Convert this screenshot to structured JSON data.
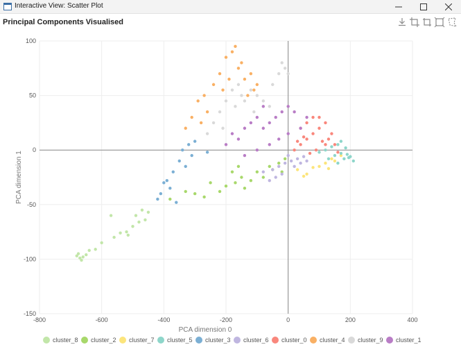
{
  "window": {
    "title": "Interactive View: Scatter Plot",
    "buttons": {
      "minimize": "minimize-icon",
      "maximize": "maximize-icon",
      "close": "close-icon"
    }
  },
  "page": {
    "title": "Principal Components Visualised"
  },
  "toolbar": {
    "icons": [
      "download-icon",
      "crop-icon",
      "crop-alt-icon",
      "zoom-select-icon",
      "lasso-select-icon"
    ]
  },
  "chart_data": {
    "type": "scatter",
    "xlabel": "PCA dimension 0",
    "ylabel": "PCA dimension 1",
    "xlim": [
      -800,
      400
    ],
    "ylim": [
      -150,
      100
    ],
    "xticks": [
      -800,
      -600,
      -400,
      -200,
      0,
      200,
      400
    ],
    "yticks": [
      -150,
      -100,
      -50,
      0,
      50,
      100
    ],
    "grid": true,
    "legend_position": "bottom",
    "series": [
      {
        "name": "cluster_8",
        "color": "#c2e6a9",
        "points": [
          [
            -680,
            -97
          ],
          [
            -670,
            -99
          ],
          [
            -665,
            -101
          ],
          [
            -675,
            -95
          ],
          [
            -660,
            -98
          ],
          [
            -650,
            -96
          ],
          [
            -640,
            -92
          ],
          [
            -620,
            -91
          ],
          [
            -600,
            -85
          ],
          [
            -570,
            -60
          ],
          [
            -560,
            -80
          ],
          [
            -540,
            -76
          ],
          [
            -520,
            -75
          ],
          [
            -515,
            -78
          ],
          [
            -500,
            -70
          ],
          [
            -490,
            -60
          ],
          [
            -480,
            -66
          ],
          [
            -470,
            -55
          ],
          [
            -460,
            -64
          ],
          [
            -450,
            -57
          ]
        ]
      },
      {
        "name": "cluster_2",
        "color": "#a8d86b",
        "points": [
          [
            -380,
            -45
          ],
          [
            -330,
            -38
          ],
          [
            -300,
            -40
          ],
          [
            -270,
            -43
          ],
          [
            -250,
            -30
          ],
          [
            -220,
            -38
          ],
          [
            -200,
            -33
          ],
          [
            -180,
            -20
          ],
          [
            -170,
            -30
          ],
          [
            -150,
            -25
          ],
          [
            -140,
            -35
          ],
          [
            -120,
            -28
          ],
          [
            -100,
            -20
          ],
          [
            -80,
            -25
          ],
          [
            -60,
            -15
          ],
          [
            -50,
            -18
          ],
          [
            -30,
            -12
          ],
          [
            -20,
            -20
          ],
          [
            -10,
            -8
          ],
          [
            -160,
            -15
          ]
        ]
      },
      {
        "name": "cluster_7",
        "color": "#fce57c",
        "points": [
          [
            30,
            -18
          ],
          [
            60,
            -22
          ],
          [
            80,
            -16
          ],
          [
            100,
            -15
          ],
          [
            120,
            -12
          ],
          [
            130,
            -17
          ],
          [
            140,
            -8
          ],
          [
            150,
            -10
          ],
          [
            170,
            -5
          ],
          [
            50,
            -24
          ]
        ]
      },
      {
        "name": "cluster_5",
        "color": "#8ed6ca",
        "points": [
          [
            100,
            -2
          ],
          [
            120,
            0
          ],
          [
            140,
            3
          ],
          [
            150,
            -5
          ],
          [
            160,
            5
          ],
          [
            170,
            -3
          ],
          [
            180,
            -8
          ],
          [
            190,
            -4
          ],
          [
            200,
            -6
          ],
          [
            210,
            -10
          ],
          [
            130,
            -8
          ],
          [
            160,
            -12
          ],
          [
            170,
            8
          ],
          [
            185,
            2
          ],
          [
            195,
            -7
          ]
        ]
      },
      {
        "name": "cluster_3",
        "color": "#7bafd4",
        "points": [
          [
            -400,
            -30
          ],
          [
            -390,
            -28
          ],
          [
            -380,
            -35
          ],
          [
            -370,
            -20
          ],
          [
            -350,
            -10
          ],
          [
            -340,
            0
          ],
          [
            -320,
            5
          ],
          [
            -300,
            8
          ],
          [
            -260,
            -2
          ],
          [
            -360,
            -48
          ],
          [
            -410,
            -40
          ],
          [
            -420,
            -45
          ],
          [
            -330,
            -15
          ],
          [
            -310,
            -5
          ]
        ]
      },
      {
        "name": "cluster_6",
        "color": "#bfb6e0",
        "points": [
          [
            -80,
            -20
          ],
          [
            -50,
            -18
          ],
          [
            -30,
            -15
          ],
          [
            -10,
            -12
          ],
          [
            10,
            -10
          ],
          [
            20,
            -15
          ],
          [
            30,
            -8
          ],
          [
            40,
            -12
          ],
          [
            50,
            -6
          ],
          [
            60,
            -10
          ],
          [
            -40,
            -25
          ],
          [
            -20,
            -22
          ],
          [
            0,
            -5
          ],
          [
            -60,
            -28
          ]
        ]
      },
      {
        "name": "cluster_0",
        "color": "#f9877c",
        "points": [
          [
            20,
            0
          ],
          [
            40,
            5
          ],
          [
            60,
            10
          ],
          [
            80,
            15
          ],
          [
            100,
            20
          ],
          [
            120,
            25
          ],
          [
            130,
            10
          ],
          [
            150,
            5
          ],
          [
            140,
            15
          ],
          [
            90,
            0
          ],
          [
            70,
            -3
          ],
          [
            110,
            8
          ],
          [
            40,
            20
          ],
          [
            60,
            25
          ],
          [
            100,
            30
          ],
          [
            50,
            12
          ],
          [
            120,
            5
          ],
          [
            160,
            -2
          ],
          [
            30,
            8
          ],
          [
            80,
            30
          ]
        ]
      },
      {
        "name": "cluster_4",
        "color": "#f9b064",
        "points": [
          [
            -330,
            20
          ],
          [
            -310,
            30
          ],
          [
            -290,
            45
          ],
          [
            -270,
            50
          ],
          [
            -260,
            35
          ],
          [
            -240,
            60
          ],
          [
            -220,
            70
          ],
          [
            -200,
            85
          ],
          [
            -180,
            90
          ],
          [
            -160,
            75
          ],
          [
            -170,
            95
          ],
          [
            -150,
            80
          ],
          [
            -140,
            65
          ],
          [
            -120,
            70
          ],
          [
            -110,
            55
          ],
          [
            -100,
            60
          ],
          [
            -130,
            50
          ],
          [
            -190,
            65
          ],
          [
            -210,
            55
          ],
          [
            -280,
            25
          ]
        ]
      },
      {
        "name": "cluster_9",
        "color": "#d9d9d9",
        "points": [
          [
            -260,
            15
          ],
          [
            -240,
            25
          ],
          [
            -220,
            35
          ],
          [
            -200,
            45
          ],
          [
            -180,
            55
          ],
          [
            -160,
            60
          ],
          [
            -150,
            50
          ],
          [
            -140,
            45
          ],
          [
            -120,
            55
          ],
          [
            -100,
            50
          ],
          [
            -80,
            45
          ],
          [
            -60,
            40
          ],
          [
            -50,
            60
          ],
          [
            -30,
            70
          ],
          [
            -20,
            80
          ],
          [
            -10,
            75
          ],
          [
            0,
            70
          ],
          [
            -170,
            40
          ],
          [
            -210,
            20
          ],
          [
            -110,
            35
          ]
        ]
      },
      {
        "name": "cluster_1",
        "color": "#b97dc6",
        "points": [
          [
            -200,
            5
          ],
          [
            -180,
            15
          ],
          [
            -160,
            10
          ],
          [
            -140,
            20
          ],
          [
            -120,
            25
          ],
          [
            -100,
            30
          ],
          [
            -80,
            20
          ],
          [
            -60,
            25
          ],
          [
            -40,
            30
          ],
          [
            -20,
            35
          ],
          [
            0,
            40
          ],
          [
            20,
            35
          ],
          [
            -100,
            0
          ],
          [
            -60,
            5
          ],
          [
            -30,
            10
          ],
          [
            0,
            15
          ],
          [
            -140,
            -5
          ],
          [
            40,
            20
          ],
          [
            -80,
            40
          ],
          [
            60,
            30
          ]
        ]
      }
    ]
  }
}
